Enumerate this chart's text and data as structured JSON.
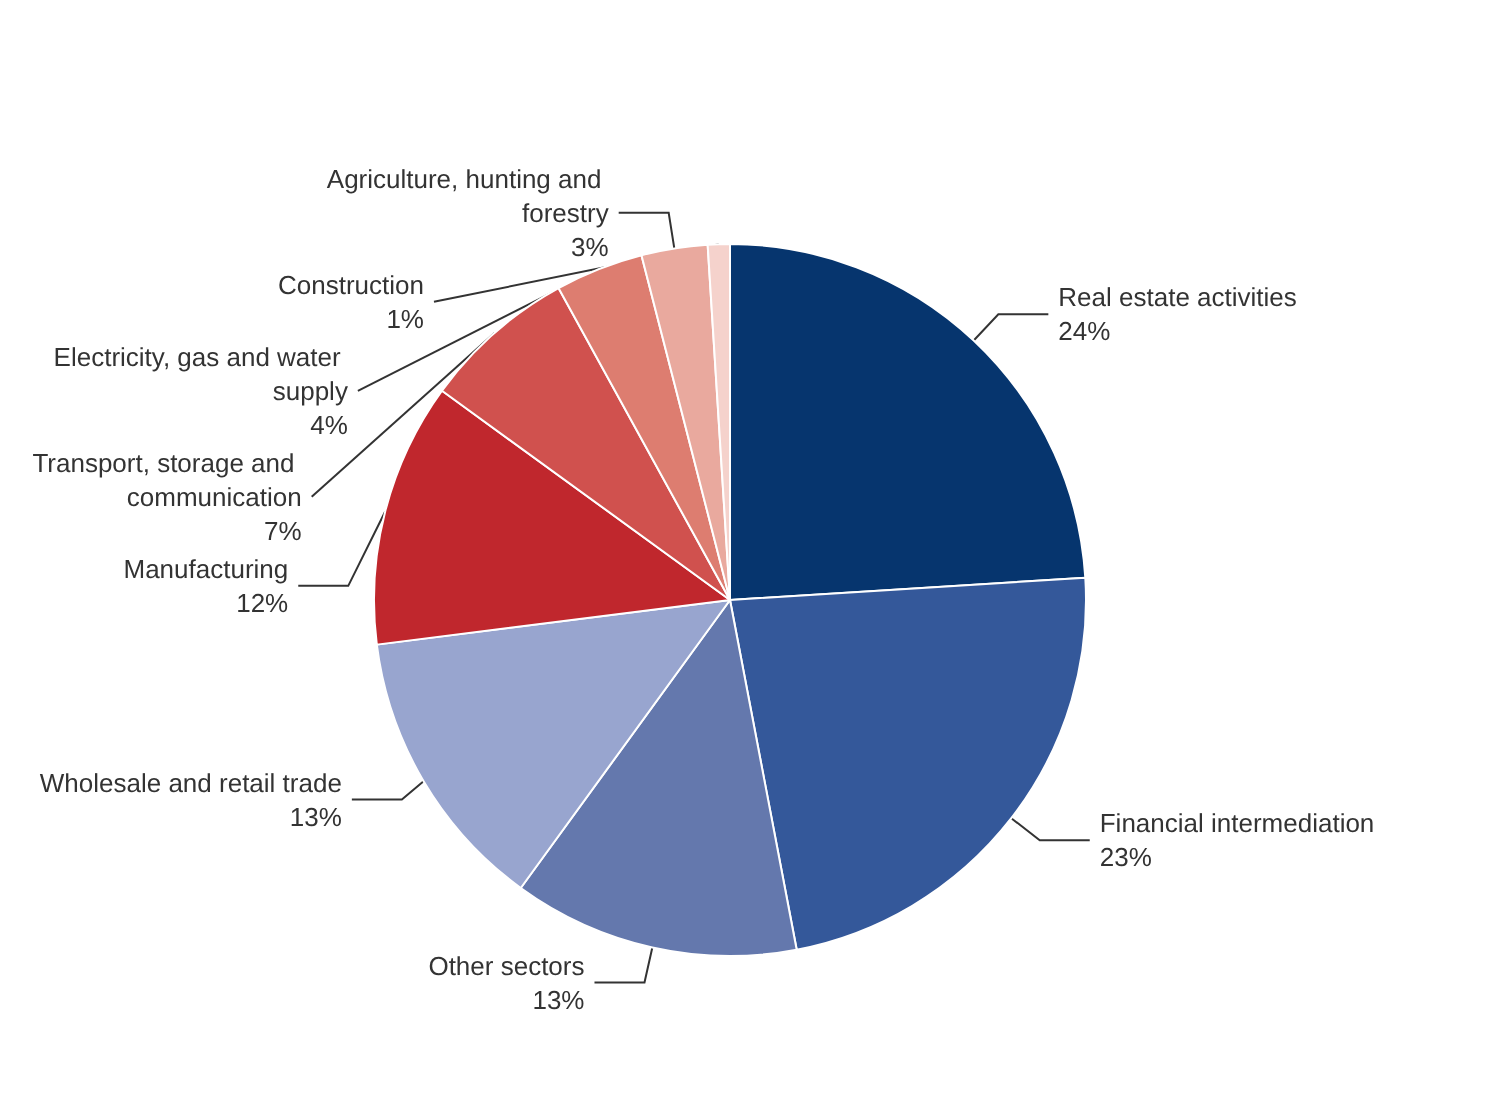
{
  "chart_data": {
    "type": "pie",
    "categories": [
      "Real estate activities",
      "Financial intermediation",
      "Other sectors",
      "Wholesale and retail trade",
      "Manufacturing",
      "Transport, storage and communication",
      "Electricity, gas and water supply",
      "Agriculture, hunting and forestry",
      "Construction"
    ],
    "values": [
      24,
      23,
      13,
      13,
      12,
      7,
      4,
      3,
      1
    ],
    "value_labels": [
      "24%",
      "23%",
      "13%",
      "13%",
      "12%",
      "7%",
      "4%",
      "3%",
      "1%"
    ],
    "colors": [
      "#06356e",
      "#34589a",
      "#6478ad",
      "#98a5cf",
      "#c0272d",
      "#d0514e",
      "#dd7d70",
      "#e9a99e",
      "#f5d2cc"
    ],
    "legend": false
  }
}
